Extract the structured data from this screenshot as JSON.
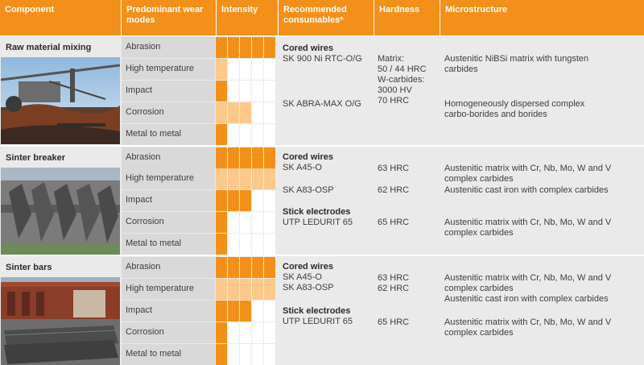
{
  "header": {
    "component": "Component",
    "wear_modes": "Predominant wear modes",
    "intensity": "Intensity",
    "consumables": "Recommended consumables*",
    "hardness": "Hardness",
    "microstructure": "Microstructure"
  },
  "colors": {
    "accent": "#f39019",
    "accent_light": "#fcc98d",
    "row_bg": "#d9d9d9",
    "panel_bg": "#eaeaea"
  },
  "groups": [
    {
      "title": "Raw material mixing",
      "modes": [
        {
          "label": "Abrasion",
          "intensity": 5
        },
        {
          "label": "High temperature",
          "intensity": 1
        },
        {
          "label": "Impact",
          "intensity": 1
        },
        {
          "label": "Corrosion",
          "intensity": 3
        },
        {
          "label": "Metal to metal",
          "intensity": 1
        }
      ],
      "consumables": {
        "heading1": "Cored wires",
        "item1": "SK 900 Ni RTC-O/G",
        "item2": "SK ABRA-MAX O/G"
      },
      "hardness": {
        "line1": "Matrix:",
        "line2": "50 / 44 HRC",
        "line3": "W-carbides:",
        "line4": "3000 HV",
        "line5": "70 HRC"
      },
      "micro": {
        "a1": "Austenitic NiBSi matrix with tungsten",
        "a2": "carbides",
        "b1": "Homogeneously dispersed complex",
        "b2": "carbo-borides and borides"
      }
    },
    {
      "title": "Sinter breaker",
      "modes": [
        {
          "label": "Abrasion",
          "intensity": 5
        },
        {
          "label": "High temperature",
          "intensity": 5
        },
        {
          "label": "Impact",
          "intensity": 3
        },
        {
          "label": "Corrosion",
          "intensity": 1
        },
        {
          "label": "Metal to metal",
          "intensity": 1
        }
      ],
      "consumables": {
        "heading1": "Cored wires",
        "item1": "SK A45-O",
        "item2": "SK A83-OSP",
        "heading2": "Stick electrodes",
        "item3": "UTP LEDURIT 65"
      },
      "hardness": {
        "h1": "63 HRC",
        "h2": "62 HRC",
        "h3": "65 HRC"
      },
      "micro": {
        "a1": "Austenitic matrix with Cr, Nb, Mo, W and V",
        "a2": "complex carbides",
        "b1": "Austenitic cast iron with complex carbides",
        "c1": "Austenitic matrix with Cr, Nb, Mo, W and V",
        "c2": "complex carbides"
      }
    },
    {
      "title": "Sinter bars",
      "modes": [
        {
          "label": "Abrasion",
          "intensity": 5
        },
        {
          "label": "High temperature",
          "intensity": 5
        },
        {
          "label": "Impact",
          "intensity": 3
        },
        {
          "label": "Corrosion",
          "intensity": 1
        },
        {
          "label": "Metal to metal",
          "intensity": 1
        }
      ],
      "consumables": {
        "heading1": "Cored wires",
        "item1": "SK A45-O",
        "item2": "SK A83-OSP",
        "heading2": "Stick electrodes",
        "item3": "UTP LEDURIT 65"
      },
      "hardness": {
        "h1": "63 HRC",
        "h2": "62 HRC",
        "h3": "65 HRC"
      },
      "micro": {
        "a1": "Austenitic matrix with Cr, Nb, Mo, W and V",
        "a2": "complex carbides",
        "b1": "Austenitic cast iron with complex carbides",
        "c1": "Austenitic matrix with Cr, Nb, Mo, W and V",
        "c2": "complex carbides"
      }
    }
  ]
}
